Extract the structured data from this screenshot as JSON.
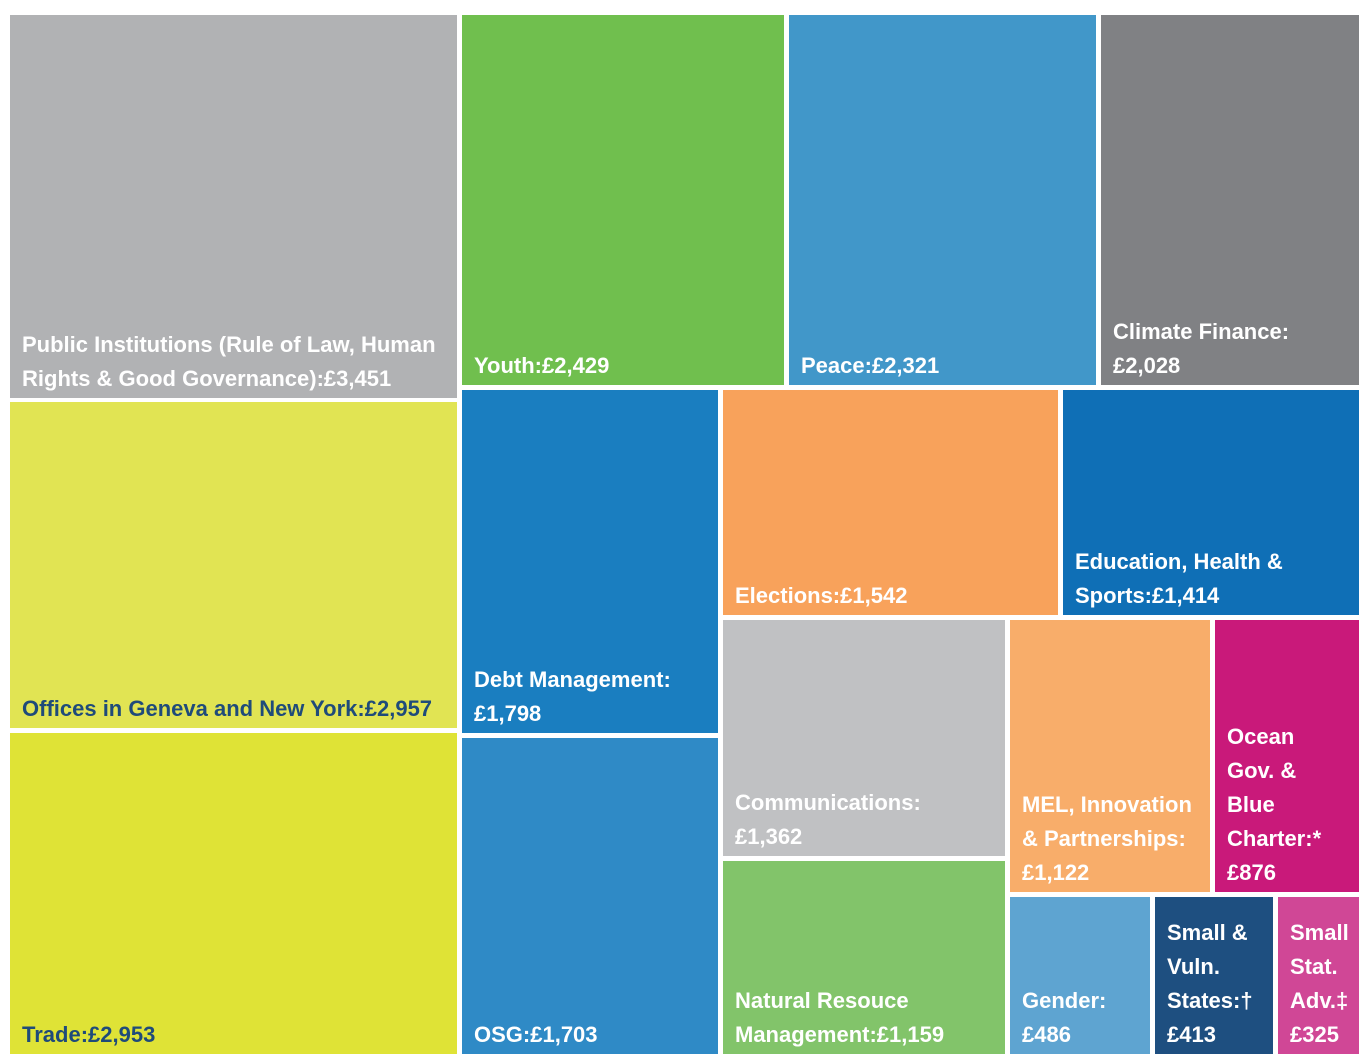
{
  "chart_data": {
    "type": "treemap",
    "categories": [
      "Public Institutions (Rule of Law, Human Rights & Good Governance):",
      "Offices in Geneva and New York:",
      "Trade:",
      "Youth:",
      "Peace:",
      "Climate Finance:",
      "Debt Management:",
      "OSG:",
      "Elections:",
      "Education, Health & Sports:",
      "Communications:",
      "Natural Resouce Management:",
      "MEL, Innovation & Partnerships:",
      "Ocean Gov. & Blue Charter:*",
      "Gender:",
      "Small & Vuln. States:†",
      "Small Stat. Adv.‡"
    ],
    "values": [
      3451,
      2957,
      2953,
      2429,
      2321,
      2028,
      1798,
      1703,
      1542,
      1414,
      1362,
      1159,
      1122,
      876,
      486,
      413,
      325
    ],
    "value_labels": [
      "£3,451",
      "£2,957",
      "£2,953",
      "£2,429",
      "£2,321",
      "£2,028",
      "£1,798",
      "£1,703",
      "£1,542",
      "£1,414",
      "£1,362",
      "£1,159",
      "£1,122",
      "£876",
      "£486",
      "£413",
      "£325"
    ],
    "colors": [
      "#b1b2b4",
      "#e1e453",
      "#dfe336",
      "#70bf4e",
      "#4197c9",
      "#808184",
      "#1a7ec0",
      "#2f8ac6",
      "#f8a25b",
      "#0f6fb6",
      "#c0c1c3",
      "#82c46a",
      "#f8ad6a",
      "#c9197a",
      "#5ea4d1",
      "#1e4f80",
      "#d04796"
    ],
    "text_colors": [
      "#ffffff",
      "#1f4b7a",
      "#1f4b7a",
      "#ffffff",
      "#ffffff",
      "#ffffff",
      "#ffffff",
      "#ffffff",
      "#ffffff",
      "#ffffff",
      "#ffffff",
      "#ffffff",
      "#ffffff",
      "#ffffff",
      "#ffffff",
      "#ffffff",
      "#ffffff"
    ]
  }
}
